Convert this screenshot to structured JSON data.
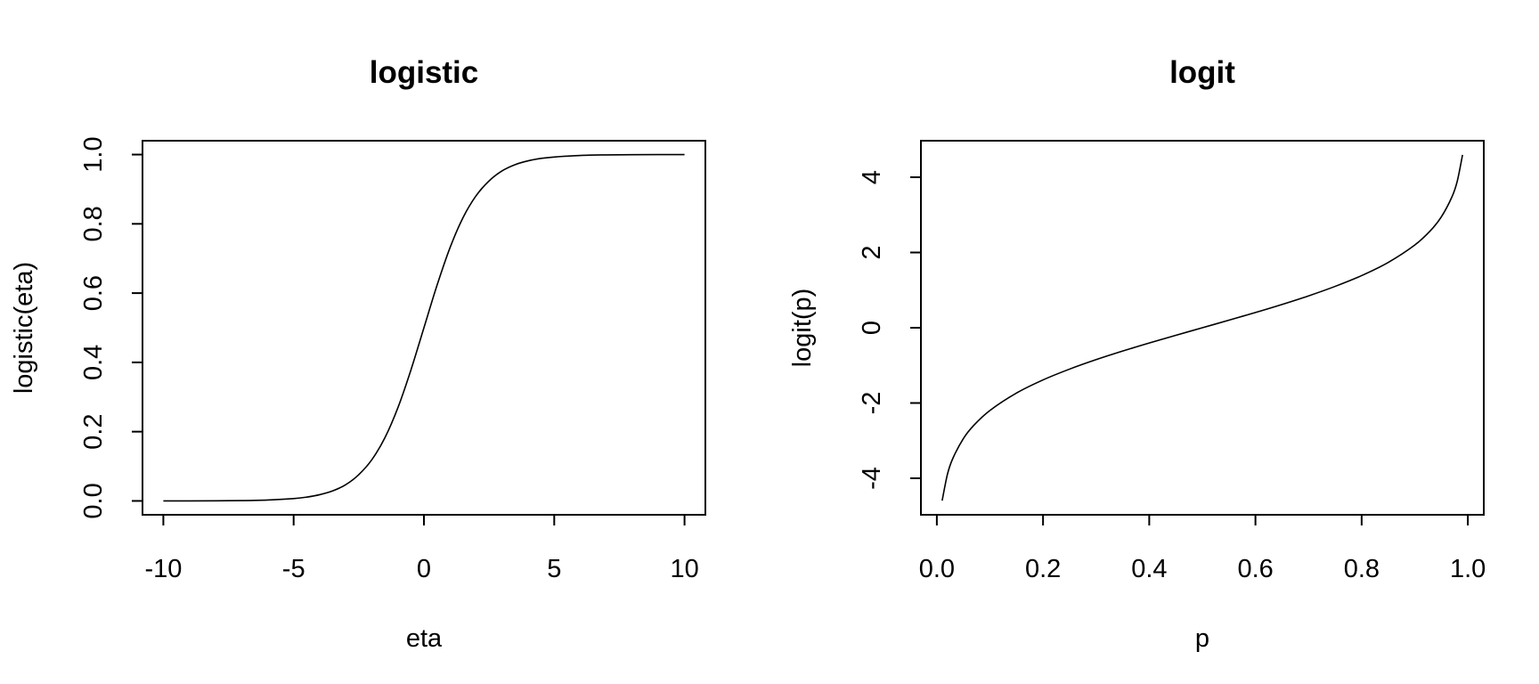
{
  "chart_data": [
    {
      "type": "line",
      "title": "logistic",
      "xlabel": "eta",
      "ylabel": "logistic(eta)",
      "xlim": [
        -10.8,
        10.8
      ],
      "ylim": [
        -0.04,
        1.04
      ],
      "x_ticks": [
        -10,
        -5,
        0,
        5,
        10
      ],
      "x_tick_labels": [
        "-10",
        "-5",
        "0",
        "5",
        "10"
      ],
      "y_ticks": [
        0,
        0.2,
        0.4,
        0.6,
        0.8,
        1
      ],
      "y_tick_labels": [
        "0.0",
        "0.2",
        "0.4",
        "0.6",
        "0.8",
        "1.0"
      ],
      "grid": false,
      "legend": "none",
      "series": [
        {
          "x": [
            -10,
            -9,
            -8,
            -7,
            -6,
            -5,
            -4.5,
            -4,
            -3.5,
            -3,
            -2.5,
            -2,
            -1.5,
            -1,
            -0.5,
            0,
            0.5,
            1,
            1.5,
            2,
            2.5,
            3,
            3.5,
            4,
            4.5,
            5,
            6,
            7,
            8,
            9,
            10
          ],
          "y": [
            5e-05,
            0.0001,
            0.0003,
            0.0009,
            0.0025,
            0.0067,
            0.011,
            0.018,
            0.029,
            0.047,
            0.076,
            0.119,
            0.182,
            0.269,
            0.378,
            0.5,
            0.622,
            0.731,
            0.818,
            0.881,
            0.924,
            0.953,
            0.971,
            0.982,
            0.989,
            0.993,
            0.9975,
            0.9991,
            0.9997,
            0.9999,
            0.99995
          ]
        }
      ]
    },
    {
      "type": "line",
      "title": "logit",
      "xlabel": "p",
      "ylabel": "logit(p)",
      "xlim": [
        -0.03,
        1.03
      ],
      "ylim": [
        -4.97,
        4.97
      ],
      "x_ticks": [
        0,
        0.2,
        0.4,
        0.6,
        0.8,
        1
      ],
      "x_tick_labels": [
        "0.0",
        "0.2",
        "0.4",
        "0.6",
        "0.8",
        "1.0"
      ],
      "y_ticks": [
        -4,
        -2,
        0,
        2,
        4
      ],
      "y_tick_labels": [
        "-4",
        "-2",
        "0",
        "2",
        "4"
      ],
      "grid": false,
      "legend": "none",
      "series": [
        {
          "x": [
            0.01,
            0.02,
            0.03,
            0.05,
            0.07,
            0.1,
            0.15,
            0.2,
            0.25,
            0.3,
            0.35,
            0.4,
            0.45,
            0.5,
            0.55,
            0.6,
            0.65,
            0.7,
            0.75,
            0.8,
            0.85,
            0.9,
            0.93,
            0.95,
            0.97,
            0.98,
            0.99
          ],
          "y": [
            -4.595,
            -3.892,
            -3.476,
            -2.944,
            -2.587,
            -2.197,
            -1.735,
            -1.386,
            -1.099,
            -0.847,
            -0.619,
            -0.405,
            -0.201,
            0,
            0.201,
            0.405,
            0.619,
            0.847,
            1.099,
            1.386,
            1.735,
            2.197,
            2.587,
            2.944,
            3.476,
            3.892,
            4.595
          ]
        }
      ]
    }
  ]
}
